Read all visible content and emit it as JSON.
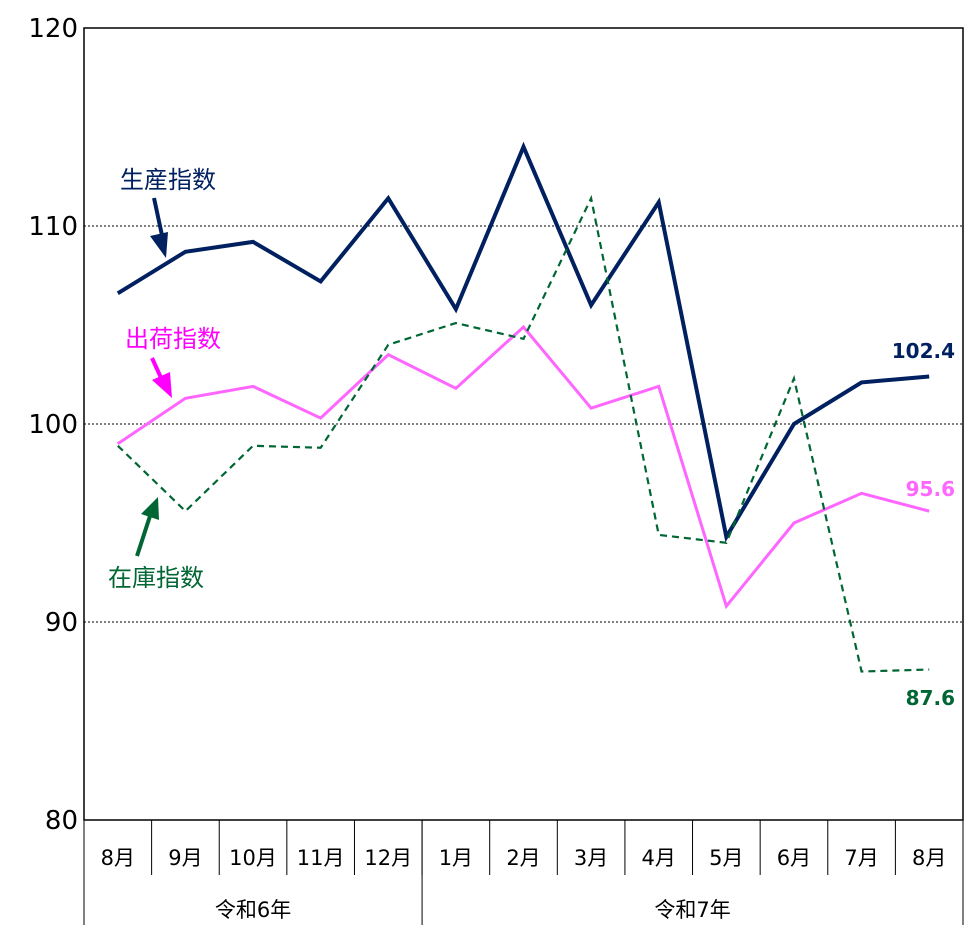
{
  "chart_data": {
    "type": "line",
    "categories": [
      "8月",
      "9月",
      "10月",
      "11月",
      "12月",
      "1月",
      "2月",
      "3月",
      "4月",
      "5月",
      "6月",
      "7月",
      "8月"
    ],
    "year_groups": [
      {
        "label": "令和6年",
        "span": 5
      },
      {
        "label": "令和7年",
        "span": 8
      }
    ],
    "ylim": [
      80,
      120
    ],
    "yticks": [
      80,
      90,
      100,
      110,
      120
    ],
    "grid": true,
    "series": [
      {
        "name": "生産指数",
        "color": "#002060",
        "dash": false,
        "values": [
          106.6,
          108.7,
          109.2,
          107.2,
          111.4,
          105.8,
          114.0,
          106.0,
          111.2,
          94.3,
          100.0,
          102.1,
          102.4
        ],
        "end_label": "102.4"
      },
      {
        "name": "出荷指数",
        "color": "#FF66FF",
        "dash": false,
        "values": [
          99.0,
          101.3,
          101.9,
          100.3,
          103.5,
          101.8,
          104.9,
          100.8,
          101.9,
          90.8,
          95.0,
          96.5,
          95.6
        ],
        "end_label": "95.6"
      },
      {
        "name": "在庫指数",
        "color": "#006633",
        "dash": true,
        "values": [
          98.9,
          95.6,
          98.9,
          98.8,
          104.0,
          105.1,
          104.3,
          111.4,
          94.4,
          94.0,
          102.3,
          87.5,
          87.6
        ],
        "end_label": "87.6"
      }
    ]
  }
}
